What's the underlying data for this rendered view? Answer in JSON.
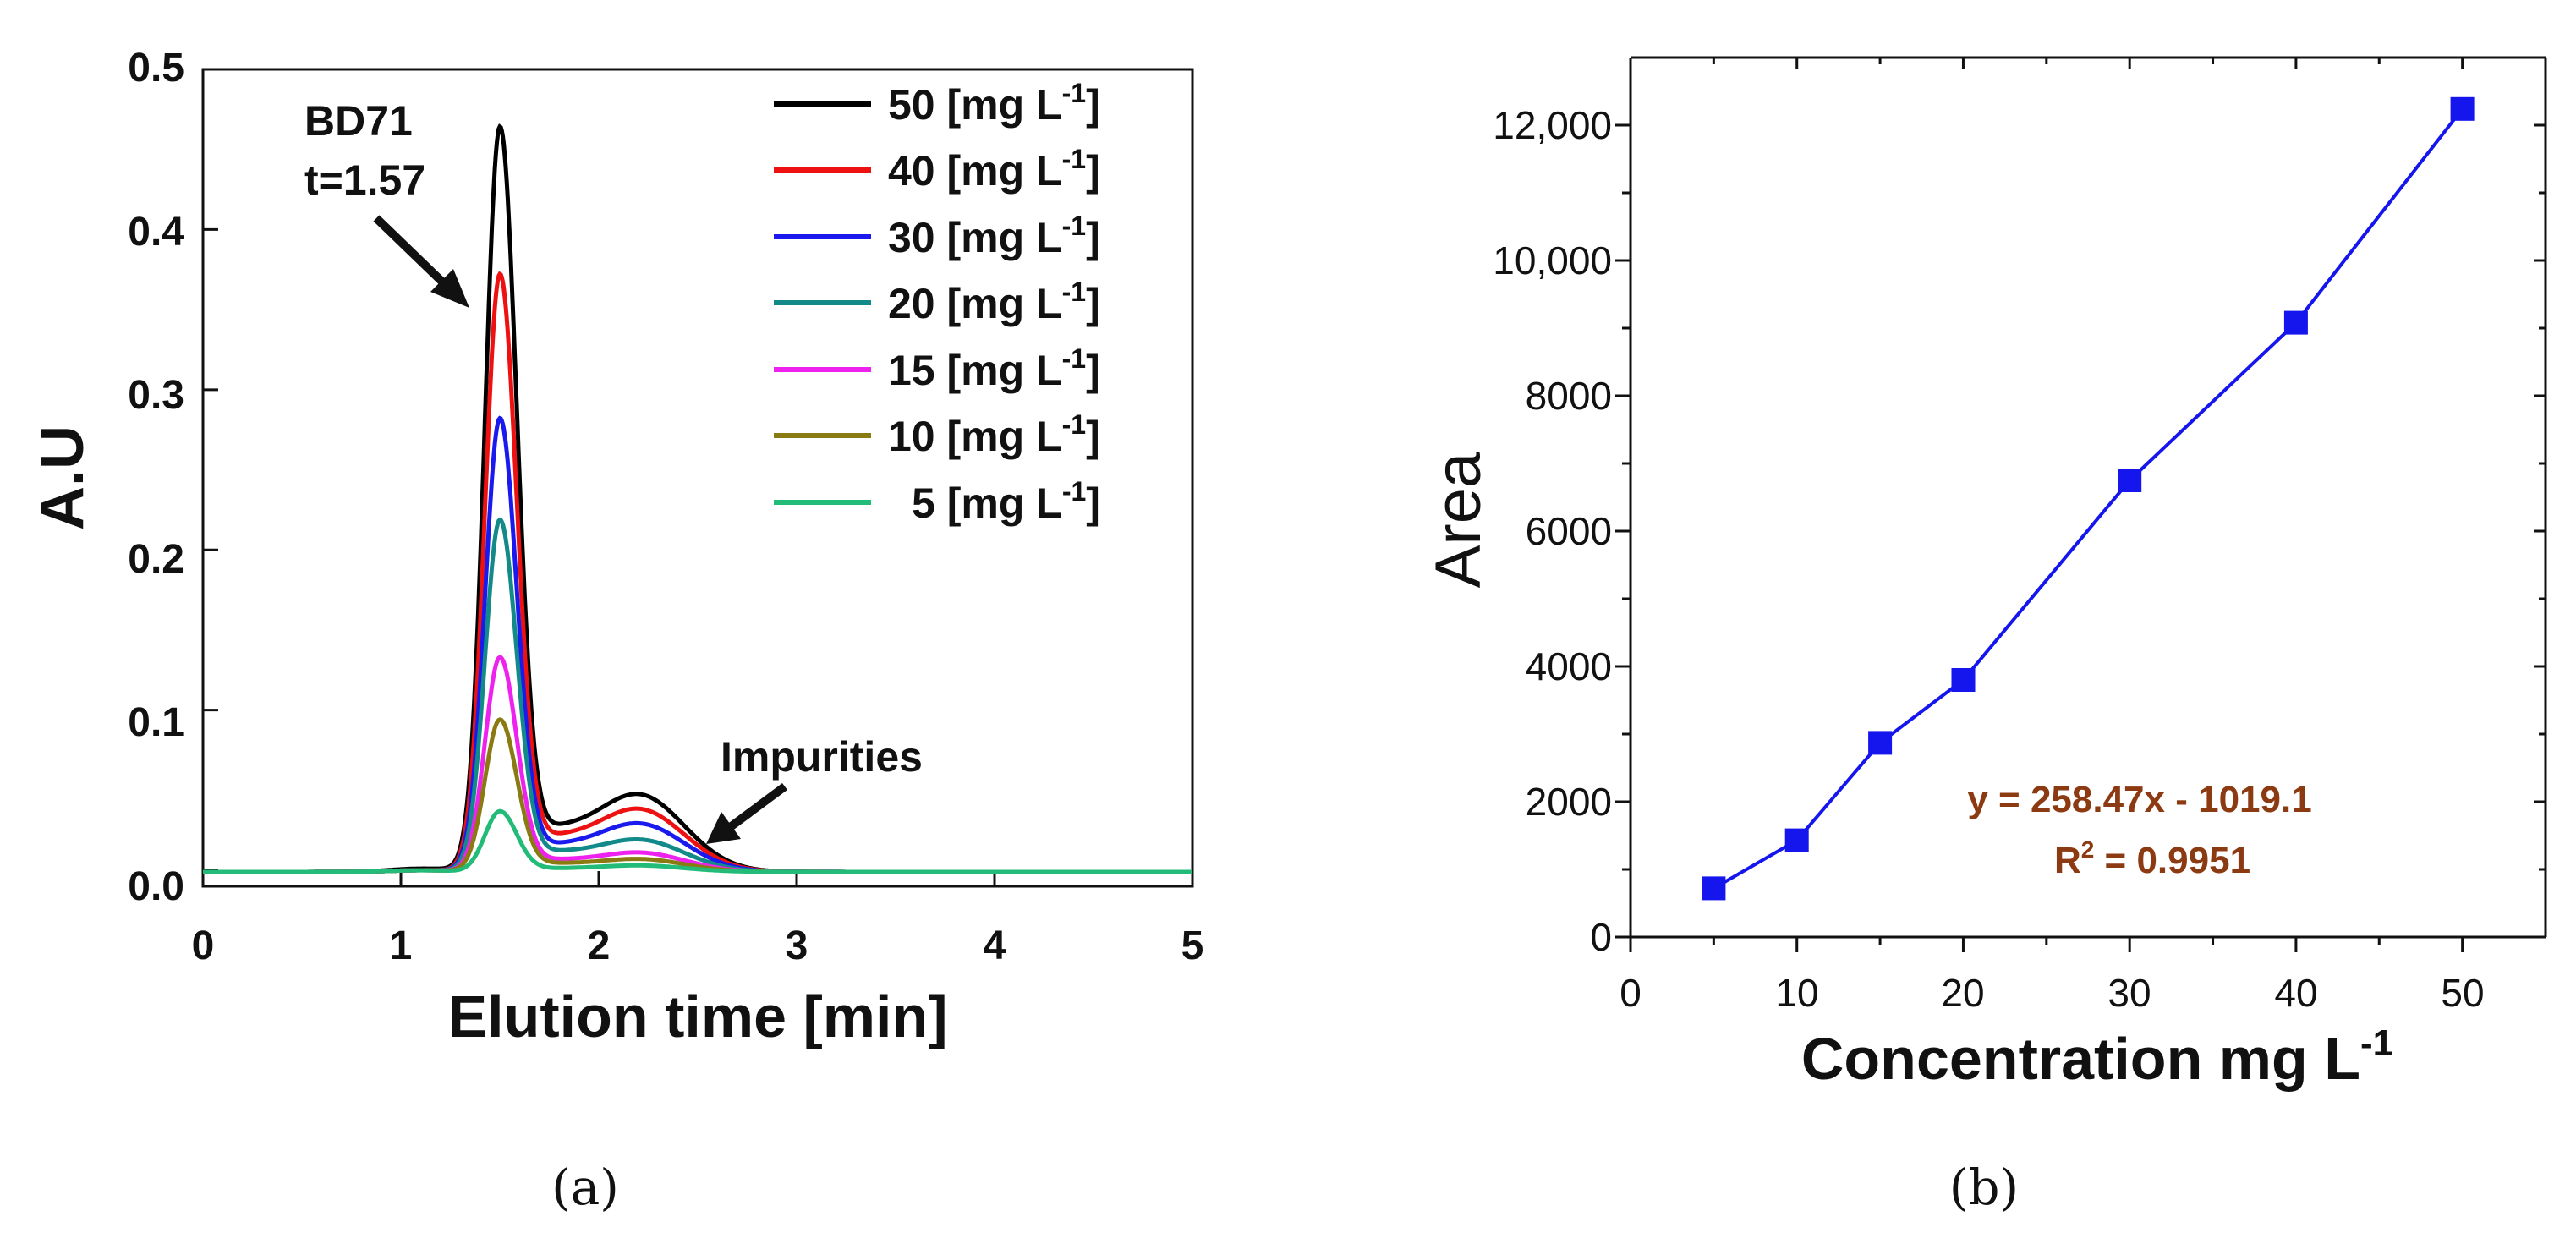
{
  "chart_data": [
    {
      "type": "line",
      "panel_label": "(a)",
      "xlabel": "Elution time [min]",
      "ylabel": "A.U",
      "xlim": [
        0,
        5
      ],
      "ylim": [
        -0.01,
        0.5
      ],
      "x_ticks": [
        "0",
        "1",
        "2",
        "3",
        "4",
        "5"
      ],
      "y_ticks": [
        "0.0",
        "0.1",
        "0.2",
        "0.3",
        "0.4",
        "0.5"
      ],
      "annotations": {
        "peak_name": "BD71",
        "peak_time": "t=1.57",
        "impurities": "Impurities"
      },
      "series": [
        {
          "name": "50",
          "unit": "[mg L",
          "sup": "-1",
          "close": "]",
          "color": "#000000",
          "main_peak": 0.455,
          "second_peak": 0.048
        },
        {
          "name": "40",
          "unit": "[mg L",
          "sup": "-1",
          "close": "]",
          "color": "#ee1111",
          "main_peak": 0.365,
          "second_peak": 0.039
        },
        {
          "name": "30",
          "unit": "[mg L",
          "sup": "-1",
          "close": "]",
          "color": "#1a1aee",
          "main_peak": 0.277,
          "second_peak": 0.03
        },
        {
          "name": "20",
          "unit": "[mg L",
          "sup": "-1",
          "close": "]",
          "color": "#138a8a",
          "main_peak": 0.215,
          "second_peak": 0.02
        },
        {
          "name": "15",
          "unit": "[mg L",
          "sup": "-1",
          "close": "]",
          "color": "#ee22ee",
          "main_peak": 0.131,
          "second_peak": 0.012
        },
        {
          "name": "10",
          "unit": "[mg L",
          "sup": "-1",
          "close": "]",
          "color": "#8a7a12",
          "main_peak": 0.093,
          "second_peak": 0.008
        },
        {
          "name": "5",
          "unit": "[mg L",
          "sup": "-1",
          "close": "]",
          "color": "#22bb77",
          "main_peak": 0.037,
          "second_peak": 0.004
        }
      ]
    },
    {
      "type": "line",
      "panel_label": "(b)",
      "xlabel": "Concentration mg L",
      "xlabel_sup": "-1",
      "ylabel": "Area",
      "xlim": [
        0,
        55
      ],
      "ylim": [
        0,
        13000
      ],
      "x_ticks": [
        "0",
        "10",
        "20",
        "30",
        "40",
        "50"
      ],
      "y_ticks": [
        "0",
        "2000",
        "4000",
        "6000",
        "8000",
        "10,000",
        "12,000"
      ],
      "color": "#1515ee",
      "x": [
        5,
        10,
        15,
        20,
        30,
        40,
        50
      ],
      "y": [
        720,
        1430,
        2870,
        3800,
        6750,
        9080,
        12240
      ],
      "equation": "y = 258.47x - 1019.1",
      "r2_label": "R",
      "r2_sup": "2",
      "r2_value": " = 0.9951"
    }
  ]
}
